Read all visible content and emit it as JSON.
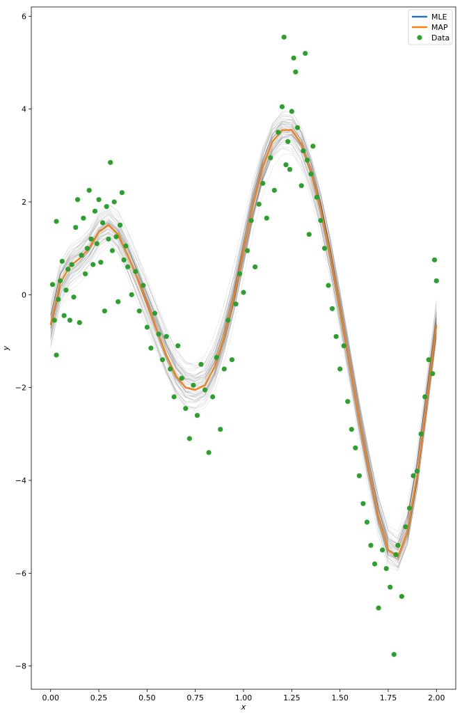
{
  "chart_data": {
    "type": "line",
    "xlabel": "x",
    "ylabel": "y",
    "xlim": [
      -0.1,
      2.1
    ],
    "ylim": [
      -8.5,
      6.2
    ],
    "xticks": [
      0.0,
      0.25,
      0.5,
      0.75,
      1.0,
      1.25,
      1.5,
      1.75,
      2.0
    ],
    "xtick_labels": [
      "0.00",
      "0.25",
      "0.50",
      "0.75",
      "1.00",
      "1.25",
      "1.50",
      "1.75",
      "2.00"
    ],
    "yticks": [
      -8,
      -6,
      -4,
      -2,
      0,
      2,
      4,
      6
    ],
    "ytick_labels": [
      "−8",
      "−6",
      "−4",
      "−2",
      "0",
      "2",
      "4",
      "6"
    ],
    "grid": false,
    "legend_position": "top-right",
    "x": [
      0.0,
      0.05,
      0.1,
      0.15,
      0.2,
      0.25,
      0.3,
      0.35,
      0.4,
      0.45,
      0.5,
      0.55,
      0.6,
      0.65,
      0.7,
      0.75,
      0.8,
      0.85,
      0.9,
      0.95,
      1.0,
      1.05,
      1.1,
      1.15,
      1.2,
      1.25,
      1.3,
      1.35,
      1.4,
      1.45,
      1.5,
      1.55,
      1.6,
      1.65,
      1.7,
      1.75,
      1.8,
      1.85,
      1.9,
      1.95,
      2.0
    ],
    "series": [
      {
        "name": "MLE",
        "color": "#1f77b4",
        "values": [
          -0.65,
          0.25,
          0.62,
          0.78,
          1.0,
          1.35,
          1.5,
          1.3,
          0.85,
          0.35,
          -0.2,
          -0.75,
          -1.3,
          -1.75,
          -2.0,
          -2.05,
          -1.95,
          -1.55,
          -0.9,
          -0.05,
          0.95,
          1.95,
          2.75,
          3.3,
          3.55,
          3.55,
          3.25,
          2.65,
          1.85,
          0.85,
          -0.3,
          -1.5,
          -2.7,
          -3.8,
          -4.8,
          -5.5,
          -5.65,
          -5.1,
          -3.9,
          -2.3,
          -0.65
        ]
      },
      {
        "name": "MAP",
        "color": "#ff7f0e",
        "values": [
          -0.65,
          0.25,
          0.62,
          0.78,
          1.0,
          1.35,
          1.5,
          1.3,
          0.85,
          0.35,
          -0.2,
          -0.75,
          -1.3,
          -1.75,
          -2.0,
          -2.05,
          -1.95,
          -1.55,
          -0.9,
          -0.05,
          0.95,
          1.95,
          2.75,
          3.3,
          3.55,
          3.55,
          3.25,
          2.65,
          1.85,
          0.85,
          -0.3,
          -1.5,
          -2.7,
          -3.8,
          -4.8,
          -5.5,
          -5.65,
          -5.1,
          -3.9,
          -2.3,
          -0.65
        ]
      }
    ],
    "scatter": {
      "name": "Data",
      "color": "#2ca02c",
      "points": [
        [
          0.01,
          0.22
        ],
        [
          0.02,
          -0.55
        ],
        [
          0.03,
          -1.3
        ],
        [
          0.03,
          1.58
        ],
        [
          0.04,
          -0.1
        ],
        [
          0.05,
          0.3
        ],
        [
          0.06,
          0.72
        ],
        [
          0.07,
          -0.45
        ],
        [
          0.08,
          0.1
        ],
        [
          0.09,
          0.55
        ],
        [
          0.1,
          -0.55
        ],
        [
          0.11,
          0.65
        ],
        [
          0.12,
          -0.05
        ],
        [
          0.13,
          1.45
        ],
        [
          0.14,
          2.05
        ],
        [
          0.15,
          -0.6
        ],
        [
          0.16,
          0.85
        ],
        [
          0.17,
          1.65
        ],
        [
          0.18,
          0.45
        ],
        [
          0.19,
          1.0
        ],
        [
          0.2,
          2.25
        ],
        [
          0.21,
          1.2
        ],
        [
          0.22,
          0.65
        ],
        [
          0.23,
          1.8
        ],
        [
          0.24,
          1.1
        ],
        [
          0.25,
          2.05
        ],
        [
          0.26,
          0.7
        ],
        [
          0.27,
          1.55
        ],
        [
          0.28,
          -0.35
        ],
        [
          0.29,
          1.9
        ],
        [
          0.3,
          1.2
        ],
        [
          0.31,
          2.85
        ],
        [
          0.32,
          0.95
        ],
        [
          0.33,
          2.0
        ],
        [
          0.34,
          1.25
        ],
        [
          0.35,
          -0.15
        ],
        [
          0.36,
          1.5
        ],
        [
          0.37,
          2.2
        ],
        [
          0.38,
          0.75
        ],
        [
          0.39,
          1.05
        ],
        [
          0.4,
          0.6
        ],
        [
          0.42,
          0.0
        ],
        [
          0.44,
          0.5
        ],
        [
          0.46,
          -0.35
        ],
        [
          0.48,
          0.2
        ],
        [
          0.5,
          -0.7
        ],
        [
          0.52,
          -1.15
        ],
        [
          0.54,
          -0.4
        ],
        [
          0.56,
          -0.85
        ],
        [
          0.58,
          -1.4
        ],
        [
          0.6,
          -0.9
        ],
        [
          0.62,
          -1.6
        ],
        [
          0.64,
          -2.2
        ],
        [
          0.66,
          -1.1
        ],
        [
          0.68,
          -1.8
        ],
        [
          0.7,
          -2.45
        ],
        [
          0.72,
          -3.1
        ],
        [
          0.74,
          -1.95
        ],
        [
          0.76,
          -2.6
        ],
        [
          0.78,
          -1.5
        ],
        [
          0.8,
          -2.05
        ],
        [
          0.82,
          -3.4
        ],
        [
          0.84,
          -2.2
        ],
        [
          0.86,
          -1.35
        ],
        [
          0.88,
          -2.9
        ],
        [
          0.9,
          -1.6
        ],
        [
          0.92,
          -0.55
        ],
        [
          0.94,
          -1.4
        ],
        [
          0.96,
          -0.2
        ],
        [
          0.98,
          0.45
        ],
        [
          1.0,
          0.05
        ],
        [
          1.02,
          0.95
        ],
        [
          1.04,
          1.6
        ],
        [
          1.06,
          0.6
        ],
        [
          1.08,
          1.95
        ],
        [
          1.1,
          2.4
        ],
        [
          1.12,
          1.65
        ],
        [
          1.14,
          2.95
        ],
        [
          1.16,
          2.25
        ],
        [
          1.18,
          3.5
        ],
        [
          1.2,
          4.05
        ],
        [
          1.21,
          5.55
        ],
        [
          1.22,
          2.8
        ],
        [
          1.23,
          3.3
        ],
        [
          1.24,
          2.7
        ],
        [
          1.25,
          3.95
        ],
        [
          1.26,
          5.1
        ],
        [
          1.27,
          4.8
        ],
        [
          1.28,
          3.6
        ],
        [
          1.3,
          2.35
        ],
        [
          1.31,
          3.1
        ],
        [
          1.32,
          5.2
        ],
        [
          1.33,
          2.9
        ],
        [
          1.34,
          1.3
        ],
        [
          1.35,
          2.6
        ],
        [
          1.36,
          3.2
        ],
        [
          1.38,
          2.1
        ],
        [
          1.4,
          1.6
        ],
        [
          1.42,
          1.0
        ],
        [
          1.44,
          0.2
        ],
        [
          1.46,
          -0.3
        ],
        [
          1.48,
          -0.9
        ],
        [
          1.5,
          -1.6
        ],
        [
          1.52,
          -1.1
        ],
        [
          1.54,
          -2.3
        ],
        [
          1.56,
          -2.9
        ],
        [
          1.58,
          -3.3
        ],
        [
          1.6,
          -3.9
        ],
        [
          1.62,
          -4.5
        ],
        [
          1.64,
          -4.9
        ],
        [
          1.66,
          -5.4
        ],
        [
          1.68,
          -5.8
        ],
        [
          1.7,
          -6.75
        ],
        [
          1.72,
          -5.5
        ],
        [
          1.74,
          -5.9
        ],
        [
          1.76,
          -6.3
        ],
        [
          1.78,
          -7.75
        ],
        [
          1.79,
          -5.6
        ],
        [
          1.8,
          -5.4
        ],
        [
          1.82,
          -6.5
        ],
        [
          1.84,
          -5.0
        ],
        [
          1.86,
          -4.6
        ],
        [
          1.88,
          -3.9
        ],
        [
          1.9,
          -3.8
        ],
        [
          1.92,
          -3.0
        ],
        [
          1.94,
          -2.2
        ],
        [
          1.96,
          -1.4
        ],
        [
          1.98,
          -1.7
        ],
        [
          1.99,
          0.75
        ],
        [
          2.0,
          0.3
        ]
      ]
    },
    "samples": {
      "color": "#000000",
      "count": 60
    },
    "legend": [
      {
        "label": "MLE",
        "kind": "line",
        "color": "#1f77b4"
      },
      {
        "label": "MAP",
        "kind": "line",
        "color": "#ff7f0e"
      },
      {
        "label": "Data",
        "kind": "marker",
        "color": "#2ca02c"
      }
    ]
  }
}
